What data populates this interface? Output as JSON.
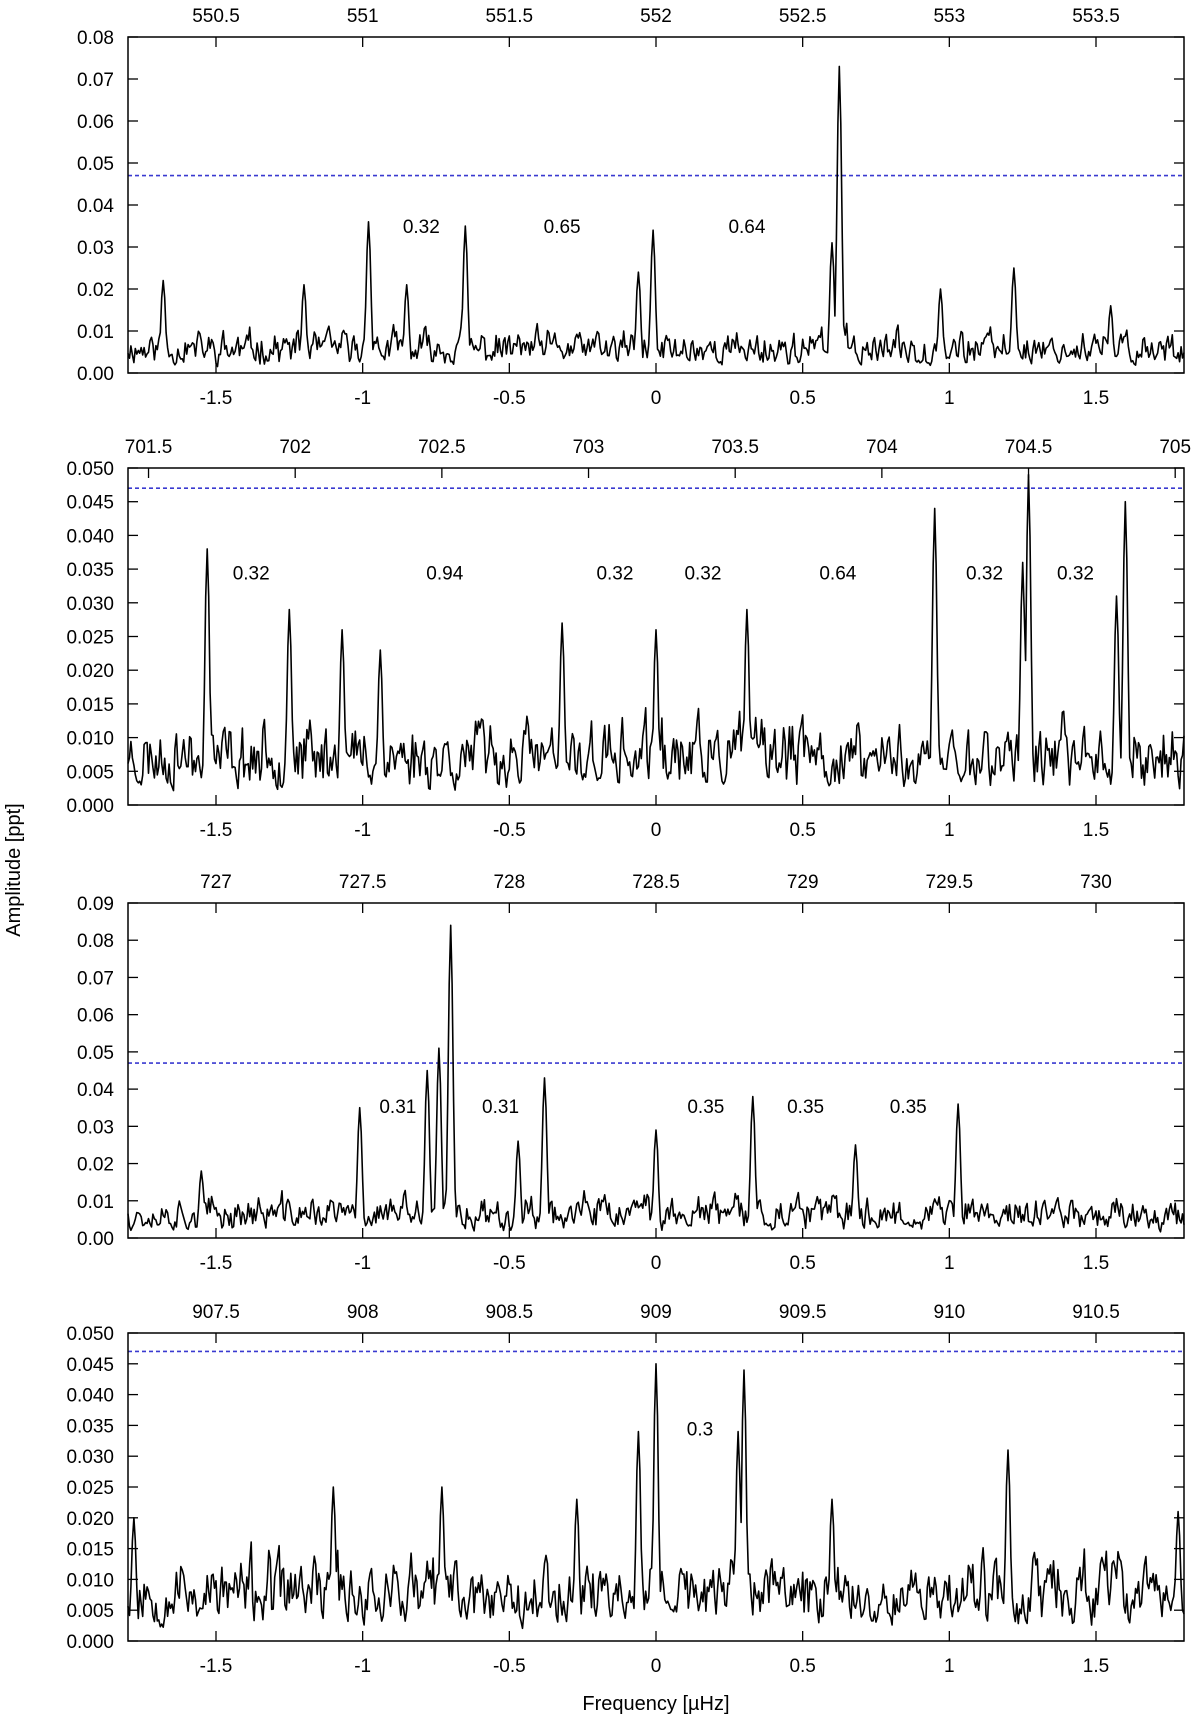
{
  "figure": {
    "ylabel": "Amplitude [ppt]",
    "xlabel": "Frequency [µHz]"
  },
  "chart_data": [
    {
      "type": "line",
      "xlim": [
        -1.8,
        1.8
      ],
      "bottom_ticks": [
        "-1.5",
        "-1",
        "-0.5",
        "0",
        "0.5",
        "1",
        "1.5"
      ],
      "top_ticks": [
        "550.5",
        "551",
        "551.5",
        "552",
        "552.5",
        "553",
        "553.5"
      ],
      "top_offset": 552.0,
      "ylim": [
        0,
        0.08
      ],
      "yticks": [
        "0.00",
        "0.01",
        "0.02",
        "0.03",
        "0.04",
        "0.05",
        "0.06",
        "0.07",
        "0.08"
      ],
      "threshold": 0.047,
      "threshold_color": "#3a3ad0",
      "noise": 0.0085,
      "seed": 11,
      "peaks": [
        [
          -0.98,
          0.036
        ],
        [
          -0.65,
          0.035
        ],
        [
          -0.01,
          0.034
        ],
        [
          -0.06,
          0.024
        ],
        [
          0.625,
          0.073
        ],
        [
          0.6,
          0.031
        ],
        [
          1.22,
          0.025
        ],
        [
          -1.68,
          0.022
        ],
        [
          0.97,
          0.02
        ],
        [
          -0.85,
          0.021
        ],
        [
          1.55,
          0.016
        ],
        [
          -1.2,
          0.021
        ]
      ],
      "annotations": [
        {
          "x": -0.8,
          "y": 0.035,
          "text": "0.32"
        },
        {
          "x": -0.32,
          "y": 0.035,
          "text": "0.65"
        },
        {
          "x": 0.31,
          "y": 0.035,
          "text": "0.64"
        }
      ]
    },
    {
      "type": "line",
      "xlim": [
        -1.8,
        1.8
      ],
      "bottom_ticks": [
        "-1.5",
        "-1",
        "-0.5",
        "0",
        "0.5",
        "1",
        "1.5"
      ],
      "top_ticks": [
        "701.5",
        "702",
        "702.5",
        "703",
        "703.5",
        "704",
        "704.5",
        "705"
      ],
      "top_offset": 703.23,
      "ylim": [
        0,
        0.05
      ],
      "yticks": [
        "0.000",
        "0.005",
        "0.010",
        "0.015",
        "0.020",
        "0.025",
        "0.030",
        "0.035",
        "0.040",
        "0.045",
        "0.050"
      ],
      "threshold": 0.047,
      "threshold_color": "#3a3ad0",
      "noise": 0.0105,
      "seed": 23,
      "peaks": [
        [
          -1.53,
          0.038
        ],
        [
          -1.25,
          0.029
        ],
        [
          -0.32,
          0.027
        ],
        [
          0.0,
          0.026
        ],
        [
          0.31,
          0.029
        ],
        [
          0.95,
          0.044
        ],
        [
          1.27,
          0.049
        ],
        [
          1.25,
          0.036
        ],
        [
          1.6,
          0.045
        ],
        [
          1.57,
          0.031
        ],
        [
          -1.07,
          0.026
        ],
        [
          -0.94,
          0.023
        ]
      ],
      "annotations": [
        {
          "x": -1.38,
          "y": 0.0345,
          "text": "0.32"
        },
        {
          "x": -0.72,
          "y": 0.0345,
          "text": "0.94"
        },
        {
          "x": -0.14,
          "y": 0.0345,
          "text": "0.32"
        },
        {
          "x": 0.16,
          "y": 0.0345,
          "text": "0.32"
        },
        {
          "x": 0.62,
          "y": 0.0345,
          "text": "0.64"
        },
        {
          "x": 1.12,
          "y": 0.0345,
          "text": "0.32"
        },
        {
          "x": 1.43,
          "y": 0.0345,
          "text": "0.32"
        }
      ]
    },
    {
      "type": "line",
      "xlim": [
        -1.8,
        1.8
      ],
      "bottom_ticks": [
        "-1.5",
        "-1",
        "-0.5",
        "0",
        "0.5",
        "1",
        "1.5"
      ],
      "top_ticks": [
        "727",
        "727.5",
        "728",
        "728.5",
        "729",
        "729.5",
        "730"
      ],
      "top_offset": 728.5,
      "ylim": [
        0,
        0.09
      ],
      "yticks": [
        "0.00",
        "0.01",
        "0.02",
        "0.03",
        "0.04",
        "0.05",
        "0.06",
        "0.07",
        "0.08",
        "0.09"
      ],
      "threshold": 0.047,
      "threshold_color": "#3a3ad0",
      "noise": 0.0095,
      "seed": 37,
      "peaks": [
        [
          -1.01,
          0.035
        ],
        [
          -0.74,
          0.051
        ],
        [
          -0.7,
          0.084
        ],
        [
          -0.78,
          0.045
        ],
        [
          -0.38,
          0.043
        ],
        [
          -0.47,
          0.026
        ],
        [
          0.0,
          0.029
        ],
        [
          0.33,
          0.038
        ],
        [
          0.68,
          0.025
        ],
        [
          1.03,
          0.036
        ],
        [
          -1.55,
          0.018
        ]
      ],
      "annotations": [
        {
          "x": -0.88,
          "y": 0.0355,
          "text": "0.31"
        },
        {
          "x": -0.53,
          "y": 0.0355,
          "text": "0.31"
        },
        {
          "x": 0.17,
          "y": 0.0355,
          "text": "0.35"
        },
        {
          "x": 0.51,
          "y": 0.0355,
          "text": "0.35"
        },
        {
          "x": 0.86,
          "y": 0.0355,
          "text": "0.35"
        }
      ]
    },
    {
      "type": "line",
      "xlim": [
        -1.8,
        1.8
      ],
      "bottom_ticks": [
        "-1.5",
        "-1",
        "-0.5",
        "0",
        "0.5",
        "1",
        "1.5"
      ],
      "top_ticks": [
        "907.5",
        "908",
        "908.5",
        "909",
        "909.5",
        "910",
        "910.5"
      ],
      "top_offset": 909.0,
      "ylim": [
        0,
        0.05
      ],
      "yticks": [
        "0.000",
        "0.005",
        "0.010",
        "0.015",
        "0.020",
        "0.025",
        "0.030",
        "0.035",
        "0.040",
        "0.045",
        "0.050"
      ],
      "threshold": 0.047,
      "threshold_color": "#3a3ad0",
      "noise": 0.0115,
      "seed": 53,
      "peaks": [
        [
          0.0,
          0.045
        ],
        [
          -0.06,
          0.034
        ],
        [
          0.3,
          0.044
        ],
        [
          0.28,
          0.034
        ],
        [
          1.2,
          0.031
        ],
        [
          -1.1,
          0.025
        ],
        [
          -0.73,
          0.025
        ],
        [
          -0.27,
          0.023
        ],
        [
          0.6,
          0.023
        ],
        [
          1.78,
          0.021
        ],
        [
          -1.78,
          0.02
        ]
      ],
      "annotations": [
        {
          "x": 0.15,
          "y": 0.0345,
          "text": "0.3"
        }
      ]
    }
  ]
}
